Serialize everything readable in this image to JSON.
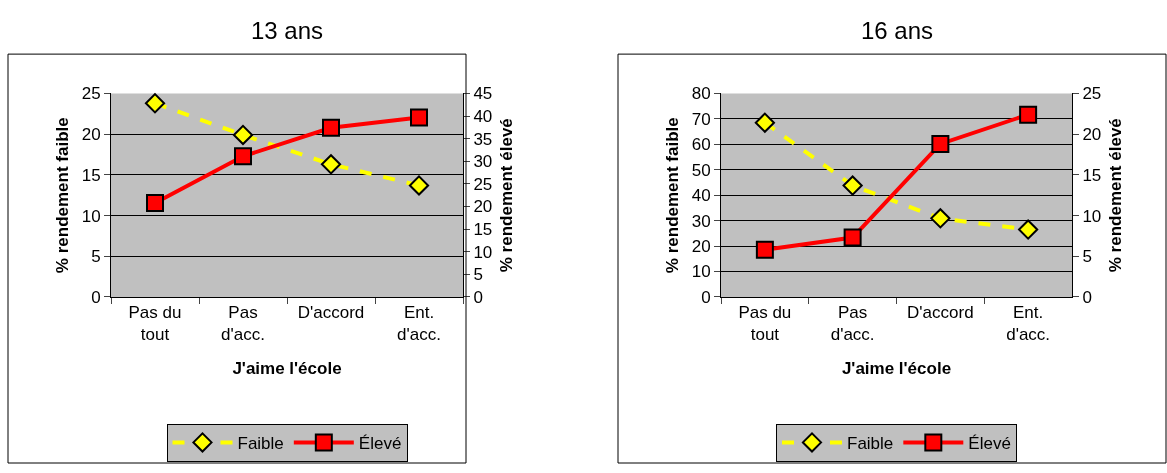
{
  "chart_data": [
    {
      "type": "line",
      "title": "13 ans",
      "xlabel": "J'aime l'école",
      "ylabel": "% rendement faible",
      "y2label": "% rendement élevé",
      "categories": [
        "Pas du\ntout",
        "Pas\nd'acc.",
        "D'accord",
        "Ent.\nd'acc."
      ],
      "series": [
        {
          "name": "Faible",
          "color": "#ffff00",
          "values": [
            23.8,
            19.9,
            16.3,
            13.7
          ],
          "axis": "y",
          "marker": "diamond",
          "line_style": "dashed"
        },
        {
          "name": "Élevé",
          "color": "#ff0000",
          "values": [
            20.8,
            31.1,
            37.4,
            39.7
          ],
          "axis": "y2",
          "marker": "square",
          "line_style": "solid"
        }
      ],
      "ylim": [
        0,
        25
      ],
      "yticks": [
        0,
        5,
        10,
        15,
        20,
        25
      ],
      "y2lim": [
        0,
        45
      ],
      "y2ticks": [
        0,
        5,
        10,
        15,
        20,
        25,
        30,
        35,
        40,
        45
      ],
      "grid": "y",
      "legend": "bottom"
    },
    {
      "type": "line",
      "title": "16 ans",
      "xlabel": "J'aime l'école",
      "ylabel": "% rendement faible",
      "y2label": "% rendement élevé",
      "categories": [
        "Pas du\ntout",
        "Pas\nd'acc.",
        "D'accord",
        "Ent.\nd'acc."
      ],
      "series": [
        {
          "name": "Faible",
          "color": "#ffff00",
          "values": [
            68.5,
            43.8,
            30.9,
            26.5
          ],
          "axis": "y",
          "marker": "diamond",
          "line_style": "dashed"
        },
        {
          "name": "Élevé",
          "color": "#ff0000",
          "values": [
            5.8,
            7.3,
            18.8,
            22.4
          ],
          "axis": "y2",
          "marker": "square",
          "line_style": "solid"
        }
      ],
      "ylim": [
        0,
        80
      ],
      "yticks": [
        0,
        10,
        20,
        30,
        40,
        50,
        60,
        70,
        80
      ],
      "y2lim": [
        0,
        25
      ],
      "y2ticks": [
        0,
        5,
        10,
        15,
        20,
        25
      ],
      "grid": "y",
      "legend": "bottom"
    }
  ]
}
